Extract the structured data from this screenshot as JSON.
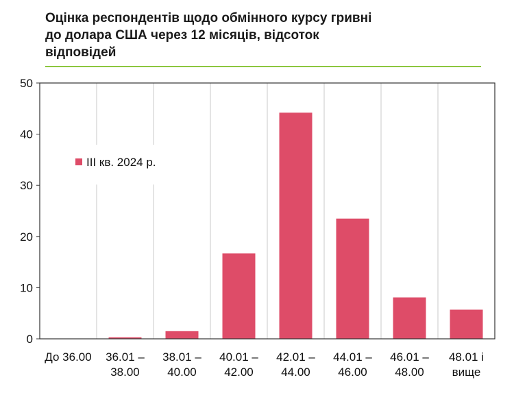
{
  "title": "Оцінка респондентів щодо обмінного курсу гривні до долара США через 12 місяців, відсоток відповідей",
  "title_lines": [
    "Оцінка респондентів щодо обмінного курсу гривні",
    "до долара США через 12 місяців, відсоток",
    "відповідей"
  ],
  "colors": {
    "bar": "#de4c68",
    "title_rule": "#8cc63f",
    "grid": "#c8c8c8",
    "axis": "#333333"
  },
  "chart_data": {
    "type": "bar",
    "categories": [
      [
        "До 36.00"
      ],
      [
        "36.01 –",
        "38.00"
      ],
      [
        "38.01 –",
        "40.00"
      ],
      [
        "40.01 –",
        "42.00"
      ],
      [
        "42.01 –",
        "44.00"
      ],
      [
        "44.01 –",
        "46.00"
      ],
      [
        "46.01 –",
        "48.00"
      ],
      [
        "48.01 і",
        "вище"
      ]
    ],
    "series": [
      {
        "name": "ІІІ кв. 2024 р.",
        "values": [
          0,
          0.3,
          1.5,
          16.7,
          44.2,
          23.5,
          8.1,
          5.7
        ]
      }
    ],
    "ylim": [
      0,
      50
    ],
    "yticks": [
      0,
      10,
      20,
      30,
      40,
      50
    ],
    "xlabel": "",
    "ylabel": "",
    "grid": "vertical",
    "legend_position": "upper-left inside"
  }
}
